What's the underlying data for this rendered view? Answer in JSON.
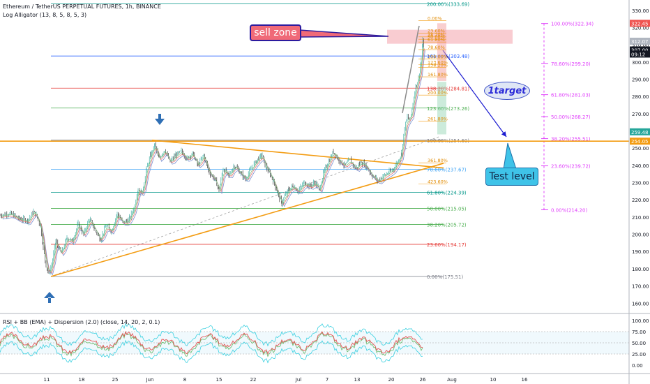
{
  "header": {
    "title": "Ethereum / TetherUS PERPETUAL FUTURES, 1h, BINANCE",
    "indicator": "Log Alligator (13, 8, 5, 8, 5, 3)",
    "rsi_indicator": "RSI + BB (EMA) + Dispersion (2.0) (close, 14, 20, 2, 0.1)"
  },
  "annotations": {
    "sell_zone": "sell zone",
    "test_level": "Test level",
    "target": "1target"
  },
  "colors": {
    "candle_up": "#26a69a",
    "candle_down": "#1b1b1b",
    "orange": "#f39c12",
    "magenta": "#e040fb",
    "sell_zone_fill": "#f8c6cc",
    "arrow_blue": "#2f6fb5",
    "last_price_badge": "#131722",
    "level_badge": "#f39c12",
    "alt_badge": "#26a69a",
    "high_badge": "#ef5350"
  },
  "chart_data": {
    "type": "candlestick",
    "title": "Ethereum / TetherUS PERPETUAL FUTURES, 1h, BINANCE",
    "x_ticks": [
      "11",
      "18",
      "25",
      "Jun",
      "8",
      "15",
      "22",
      "Jul",
      "7",
      "13",
      "20",
      "26",
      "Aug",
      "10",
      "16"
    ],
    "y_ticks": [
      160,
      170,
      180,
      190,
      200,
      210,
      220,
      230,
      240,
      250,
      260,
      270,
      280,
      290,
      300,
      310,
      320,
      330
    ],
    "price_badges": [
      {
        "label": "322.45",
        "value": 322.45,
        "color": "#ef5350"
      },
      {
        "label": "312.07",
        "value": 312.07,
        "color": "#b0b6c0"
      },
      {
        "label": "307.00",
        "value": 307.0,
        "color": "#131722"
      },
      {
        "label": "09:12",
        "value": 304.6,
        "color": "#131722"
      },
      {
        "label": "259.48",
        "value": 259.48,
        "color": "#26a69a"
      },
      {
        "label": "254.05",
        "value": 254.05,
        "color": "#f39c12"
      }
    ],
    "fib_main": [
      {
        "label": "0.00%(175.51)",
        "value": 175.51,
        "color": "#787b86"
      },
      {
        "label": "23.60%(194.17)",
        "value": 194.17,
        "color": "#e53935"
      },
      {
        "label": "38.20%(205.72)",
        "value": 205.72,
        "color": "#4caf50"
      },
      {
        "label": "50.00%(215.05)",
        "value": 215.05,
        "color": "#4caf50"
      },
      {
        "label": "61.80%(224.39)",
        "value": 224.39,
        "color": "#009688"
      },
      {
        "label": "78.60%(237.67)",
        "value": 237.67,
        "color": "#42a5f5"
      },
      {
        "label": "100.00%(254.60)",
        "value": 254.6,
        "color": "#787b86"
      },
      {
        "label": "123.60%(273.26)",
        "value": 273.26,
        "color": "#4caf50"
      },
      {
        "label": "138.20%(284.81)",
        "value": 284.81,
        "color": "#e53935"
      },
      {
        "label": "161.80%(303.48)",
        "value": 303.48,
        "color": "#2962ff"
      },
      {
        "label": "200.00%(333.69)",
        "value": 333.69,
        "color": "#009688"
      }
    ],
    "fib_ext": [
      {
        "label": "0.00%",
        "value": 324.0
      },
      {
        "label": "23.60%",
        "value": 316.8
      },
      {
        "label": "38.20%",
        "value": 314.6
      },
      {
        "label": "50.00%",
        "value": 313.2
      },
      {
        "label": "61.80%",
        "value": 311.6
      },
      {
        "label": "78.60%",
        "value": 307.2
      },
      {
        "label": "100.00%",
        "value": 301.8
      },
      {
        "label": "123.60%",
        "value": 298.6
      },
      {
        "label": "138.20%",
        "value": 296.8
      },
      {
        "label": "161.80%",
        "value": 291.4
      },
      {
        "label": "200.00%",
        "value": 280.8
      },
      {
        "label": "261.80%",
        "value": 265.6
      },
      {
        "label": "361.80%",
        "value": 241.5
      },
      {
        "label": "423.60%",
        "value": 229.3
      }
    ],
    "fib_right": [
      {
        "label": "100.00%(322.34)",
        "value": 322.34
      },
      {
        "label": "78.60%(299.20)",
        "value": 299.2
      },
      {
        "label": "61.80%(281.03)",
        "value": 281.03
      },
      {
        "label": "50.00%(268.27)",
        "value": 268.27
      },
      {
        "label": "38.20%(255.51)",
        "value": 255.51
      },
      {
        "label": "23.60%(239.72)",
        "value": 239.72
      },
      {
        "label": "0.00%(214.20)",
        "value": 214.2
      }
    ],
    "horizontal_level": 254.05,
    "price_path": [
      [
        0,
        211
      ],
      [
        15,
        212
      ],
      [
        28,
        209
      ],
      [
        40,
        208
      ],
      [
        48,
        213
      ],
      [
        52,
        211
      ],
      [
        58,
        205
      ],
      [
        62,
        192
      ],
      [
        66,
        182
      ],
      [
        70,
        177
      ],
      [
        74,
        182
      ],
      [
        80,
        196
      ],
      [
        88,
        189
      ],
      [
        96,
        198
      ],
      [
        104,
        196
      ],
      [
        112,
        206
      ],
      [
        120,
        200
      ],
      [
        128,
        209
      ],
      [
        136,
        203
      ],
      [
        144,
        197
      ],
      [
        152,
        205
      ],
      [
        160,
        202
      ],
      [
        168,
        212
      ],
      [
        176,
        207
      ],
      [
        184,
        208
      ],
      [
        192,
        215
      ],
      [
        198,
        226
      ],
      [
        204,
        224
      ],
      [
        210,
        238
      ],
      [
        216,
        246
      ],
      [
        222,
        252
      ],
      [
        228,
        244
      ],
      [
        236,
        249
      ],
      [
        244,
        242
      ],
      [
        252,
        246
      ],
      [
        260,
        248
      ],
      [
        268,
        244
      ],
      [
        276,
        247
      ],
      [
        284,
        240
      ],
      [
        292,
        246
      ],
      [
        300,
        236
      ],
      [
        308,
        232
      ],
      [
        314,
        226
      ],
      [
        320,
        238
      ],
      [
        328,
        234
      ],
      [
        336,
        240
      ],
      [
        344,
        236
      ],
      [
        352,
        232
      ],
      [
        360,
        238
      ],
      [
        368,
        243
      ],
      [
        376,
        246
      ],
      [
        380,
        240
      ],
      [
        386,
        236
      ],
      [
        392,
        231
      ],
      [
        398,
        224
      ],
      [
        404,
        218
      ],
      [
        408,
        222
      ],
      [
        414,
        226
      ],
      [
        420,
        228
      ],
      [
        428,
        225
      ],
      [
        436,
        230
      ],
      [
        444,
        228
      ],
      [
        452,
        230
      ],
      [
        458,
        226
      ],
      [
        464,
        236
      ],
      [
        470,
        241
      ],
      [
        478,
        248
      ],
      [
        486,
        243
      ],
      [
        494,
        240
      ],
      [
        502,
        243
      ],
      [
        510,
        238
      ],
      [
        518,
        242
      ],
      [
        526,
        239
      ],
      [
        534,
        234
      ],
      [
        542,
        231
      ],
      [
        550,
        234
      ],
      [
        558,
        236
      ],
      [
        564,
        238
      ],
      [
        570,
        242
      ],
      [
        576,
        247
      ],
      [
        580,
        262
      ],
      [
        584,
        268
      ],
      [
        588,
        266
      ],
      [
        592,
        276
      ],
      [
        596,
        286
      ],
      [
        600,
        290
      ],
      [
        604,
        302
      ],
      [
        606,
        312
      ],
      [
        608,
        305
      ]
    ],
    "rsi_y_ticks": [
      0.0,
      25.0,
      50.0,
      75.0,
      100.0
    ]
  }
}
